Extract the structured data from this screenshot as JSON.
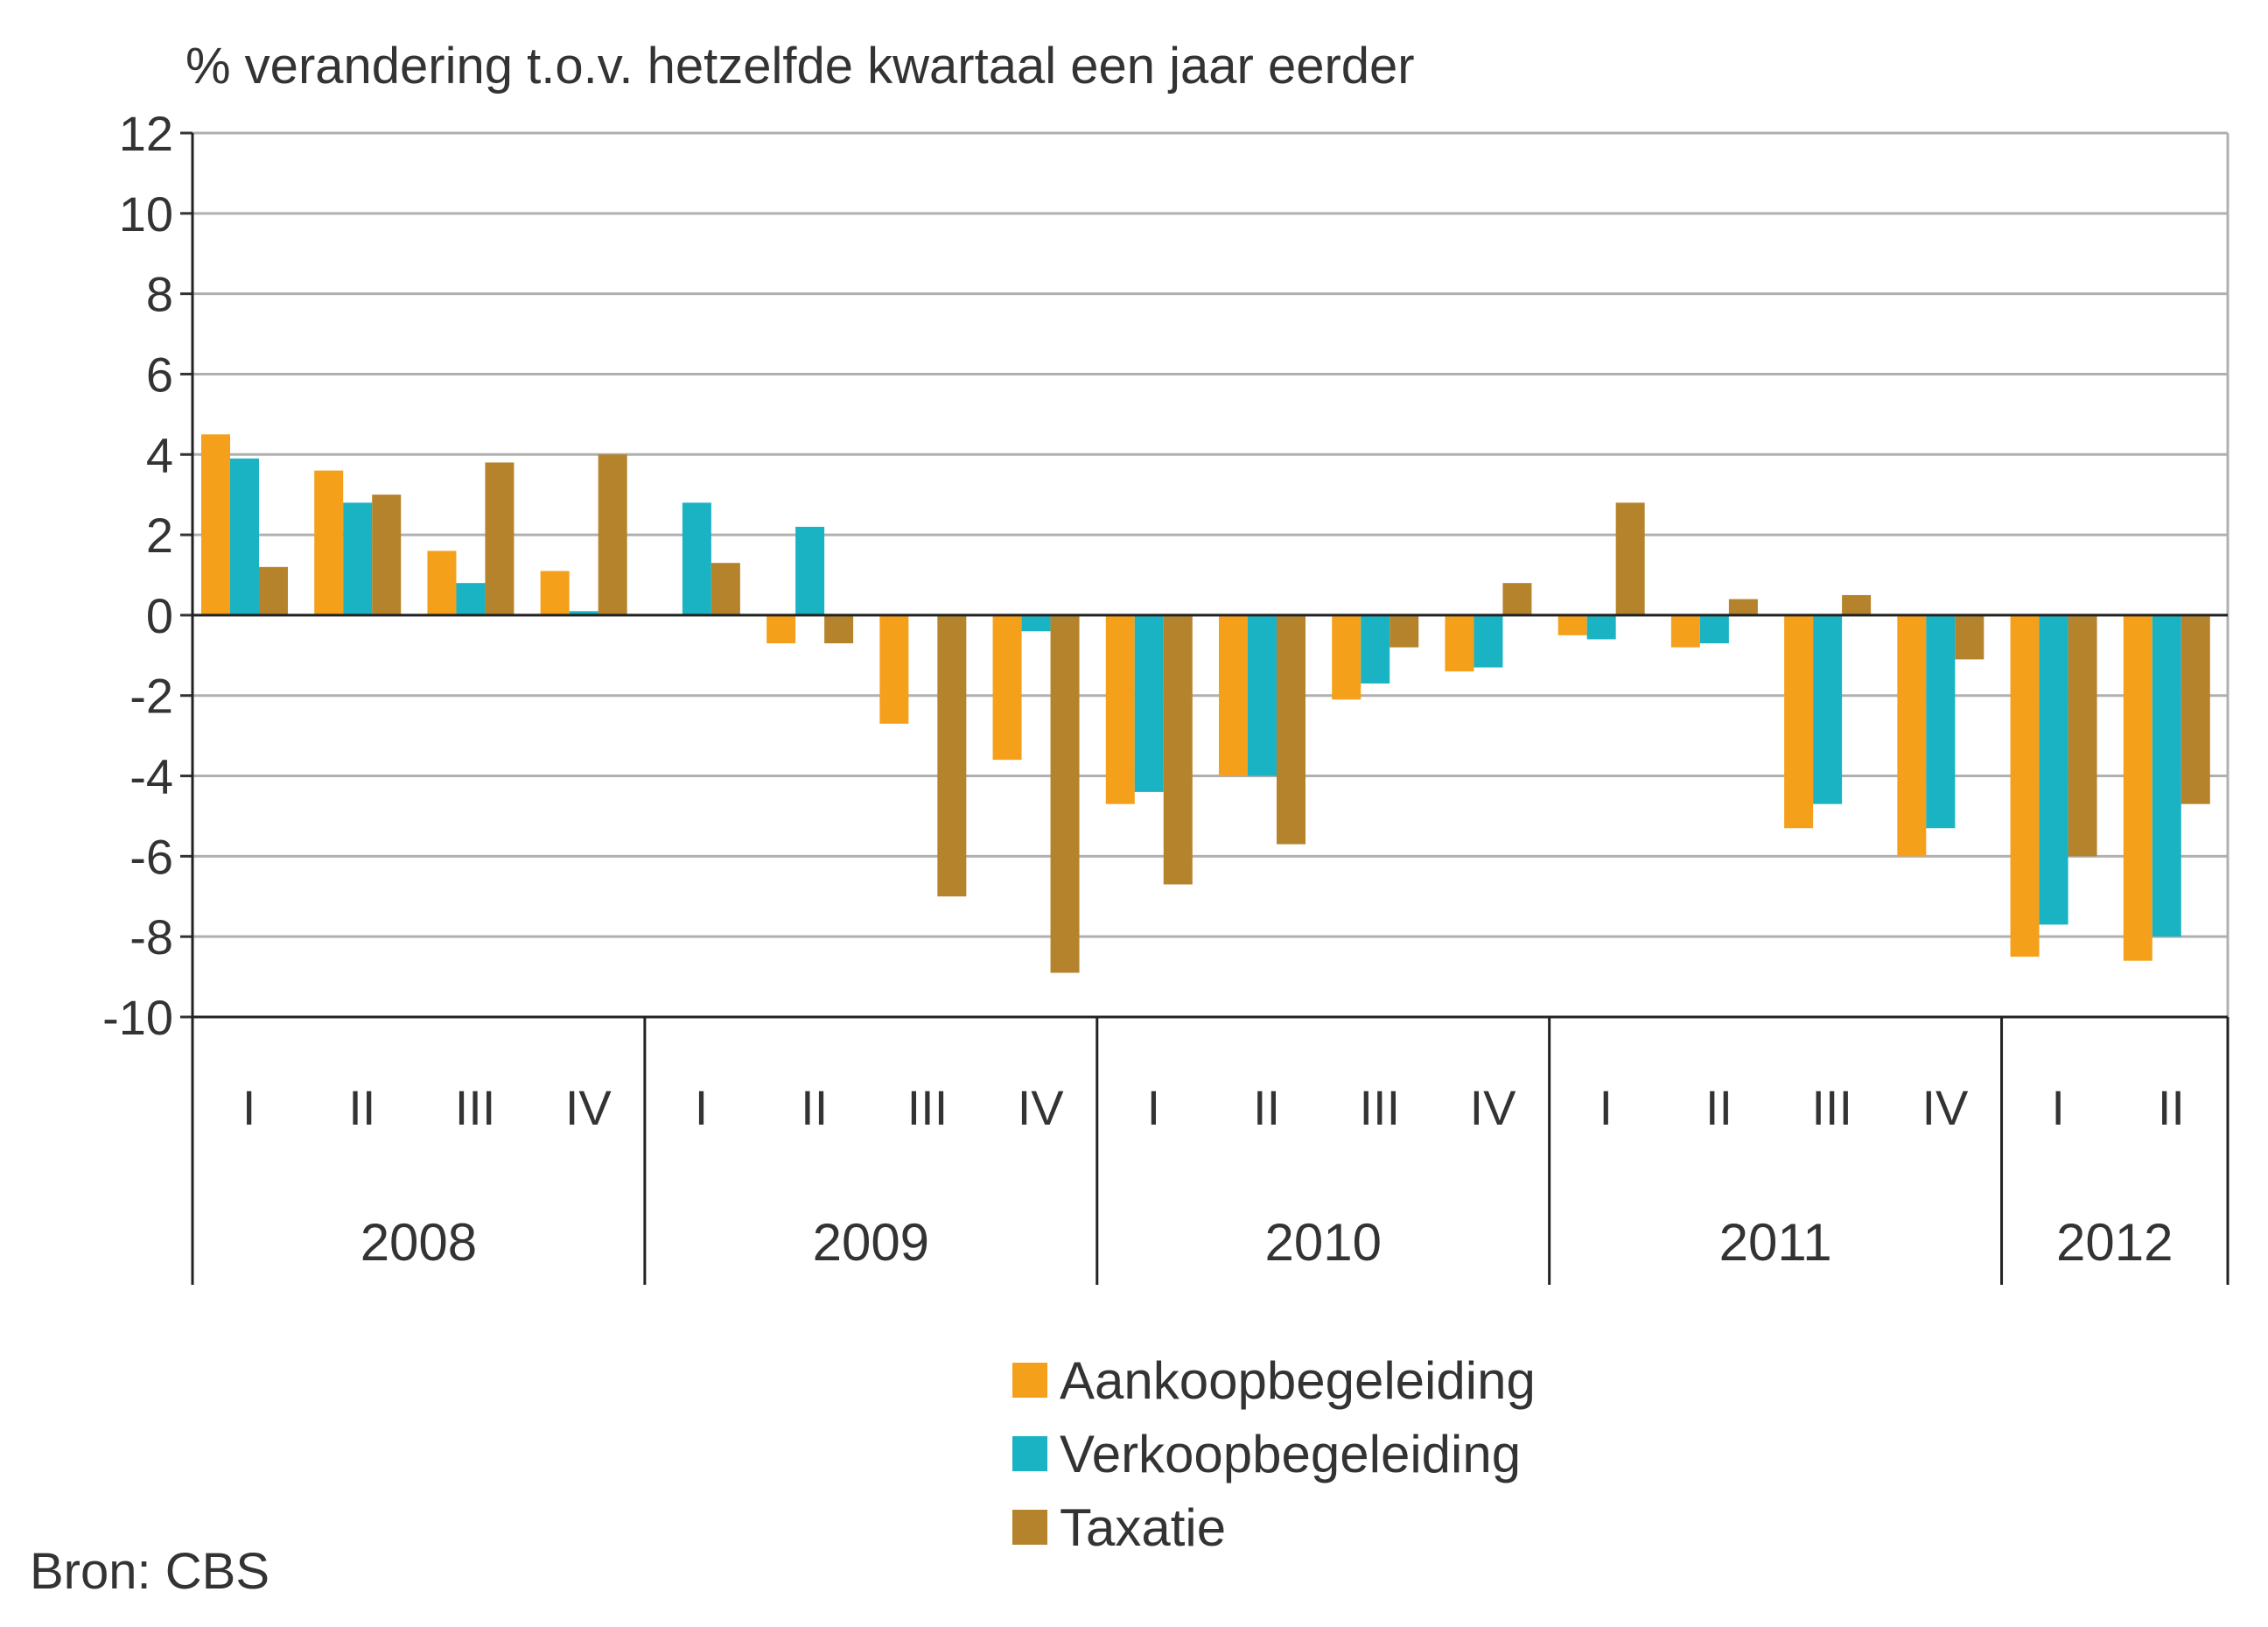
{
  "chart_data": {
    "type": "bar",
    "title": "% verandering t.o.v. hetzelfde kwartaal een jaar eerder",
    "xlabel": "",
    "ylabel": "",
    "ylim": [
      -10,
      12
    ],
    "yticks": [
      12,
      10,
      8,
      6,
      4,
      2,
      0,
      -2,
      -4,
      -6,
      -8,
      -10
    ],
    "grid": true,
    "legend_position": "bottom-center",
    "categories": [
      "I",
      "II",
      "III",
      "IV",
      "I",
      "II",
      "III",
      "IV",
      "I",
      "II",
      "III",
      "IV",
      "I",
      "II",
      "III",
      "IV",
      "I",
      "II"
    ],
    "years": [
      {
        "label": "2008",
        "quarters": 4
      },
      {
        "label": "2009",
        "quarters": 4
      },
      {
        "label": "2010",
        "quarters": 4
      },
      {
        "label": "2011",
        "quarters": 4
      },
      {
        "label": "2012",
        "quarters": 2
      }
    ],
    "series": [
      {
        "name": "Aankoopbegeleiding",
        "color": "#f5a01a",
        "values": [
          4.5,
          3.6,
          1.6,
          1.1,
          0.0,
          -0.7,
          -2.7,
          -3.6,
          -4.7,
          -4.0,
          -2.1,
          -1.4,
          -0.5,
          -0.8,
          -5.3,
          -6.0,
          -8.5,
          -8.6
        ]
      },
      {
        "name": "Verkoopbegeleiding",
        "color": "#1ab3c4",
        "values": [
          3.9,
          2.8,
          0.8,
          0.1,
          2.8,
          2.2,
          0.0,
          -0.4,
          -4.4,
          -4.0,
          -1.7,
          -1.3,
          -0.6,
          -0.7,
          -4.7,
          -5.3,
          -7.7,
          -8.0
        ]
      },
      {
        "name": "Taxatie",
        "color": "#b5832c",
        "values": [
          1.2,
          3.0,
          3.8,
          4.0,
          1.3,
          -0.7,
          -7.0,
          -8.9,
          -6.7,
          -5.7,
          -0.8,
          0.8,
          2.8,
          0.4,
          0.5,
          -1.1,
          -6.0,
          -4.7
        ]
      }
    ],
    "source": "Bron: CBS"
  }
}
